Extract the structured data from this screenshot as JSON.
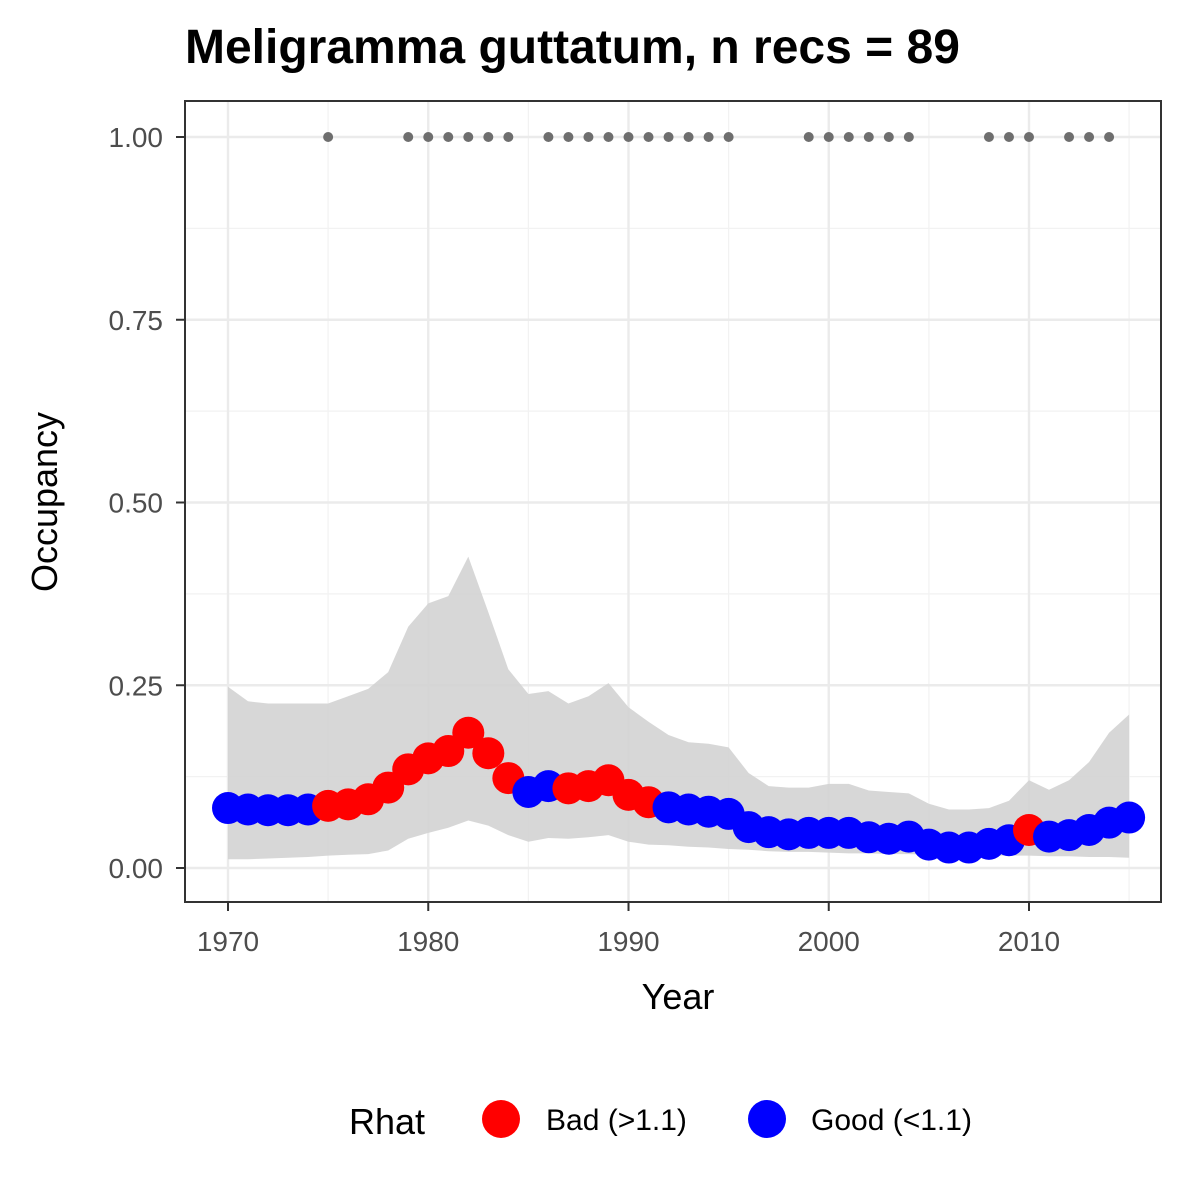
{
  "chart_data": {
    "type": "line",
    "title": "Meligramma guttatum, n recs = 89",
    "xlabel": "Year",
    "ylabel": "Occupancy",
    "xlim": [
      1967.8,
      1917.0
    ],
    "ylim": [
      -0.045,
      1.05
    ],
    "x_ticks": [
      1970,
      1980,
      1990,
      2000,
      2010
    ],
    "x_tick_labels": [
      "1970",
      "1980",
      "1990",
      "2000",
      "2010"
    ],
    "y_ticks": [
      0,
      0.25,
      0.5,
      0.75,
      1.0
    ],
    "y_tick_labels": [
      "0.00",
      "0.25",
      "0.50",
      "0.75",
      "1.00"
    ],
    "grid": true,
    "legend": {
      "title": "Rhat",
      "position": "bottom",
      "items": [
        {
          "label": "Bad (>1.1)",
          "color": "#ff0000"
        },
        {
          "label": "Good (<1.1)",
          "color": "#0000ff"
        }
      ]
    },
    "colors": {
      "Bad": "#ff0000",
      "Good": "#0000ff",
      "ribbon": "#d3d3d3",
      "records": "#6e6e6e"
    },
    "x": [
      1970,
      1971,
      1972,
      1973,
      1974,
      1975,
      1976,
      1977,
      1978,
      1979,
      1980,
      1981,
      1982,
      1983,
      1984,
      1985,
      1986,
      1987,
      1988,
      1989,
      1990,
      1991,
      1992,
      1993,
      1994,
      1995,
      1996,
      1997,
      1998,
      1999,
      2000,
      2001,
      2002,
      2003,
      2004,
      2005,
      2006,
      2007,
      2008,
      2009,
      2010,
      2011,
      2012,
      2013,
      2014,
      2015
    ],
    "occupancy": [
      0.082,
      0.08,
      0.079,
      0.079,
      0.08,
      0.085,
      0.087,
      0.094,
      0.11,
      0.135,
      0.15,
      0.16,
      0.185,
      0.157,
      0.123,
      0.104,
      0.112,
      0.109,
      0.112,
      0.12,
      0.1,
      0.09,
      0.083,
      0.08,
      0.077,
      0.074,
      0.056,
      0.049,
      0.046,
      0.048,
      0.048,
      0.048,
      0.042,
      0.04,
      0.043,
      0.032,
      0.028,
      0.028,
      0.033,
      0.038,
      0.052,
      0.043,
      0.045,
      0.052,
      0.062,
      0.069
    ],
    "lower": [
      0.012,
      0.012,
      0.013,
      0.014,
      0.015,
      0.017,
      0.018,
      0.019,
      0.024,
      0.04,
      0.048,
      0.055,
      0.065,
      0.058,
      0.045,
      0.036,
      0.041,
      0.04,
      0.042,
      0.045,
      0.036,
      0.032,
      0.031,
      0.029,
      0.028,
      0.026,
      0.025,
      0.023,
      0.022,
      0.022,
      0.021,
      0.02,
      0.02,
      0.019,
      0.019,
      0.018,
      0.017,
      0.017,
      0.017,
      0.017,
      0.017,
      0.016,
      0.016,
      0.015,
      0.015,
      0.014
    ],
    "upper": [
      0.248,
      0.228,
      0.225,
      0.225,
      0.225,
      0.225,
      0.235,
      0.245,
      0.268,
      0.33,
      0.362,
      0.372,
      0.426,
      0.35,
      0.272,
      0.238,
      0.242,
      0.225,
      0.235,
      0.253,
      0.22,
      0.2,
      0.182,
      0.172,
      0.17,
      0.165,
      0.13,
      0.112,
      0.11,
      0.11,
      0.115,
      0.115,
      0.106,
      0.104,
      0.102,
      0.088,
      0.08,
      0.08,
      0.082,
      0.092,
      0.12,
      0.107,
      0.12,
      0.145,
      0.185,
      0.21
    ],
    "rhat": [
      "Good",
      "Good",
      "Good",
      "Good",
      "Good",
      "Bad",
      "Bad",
      "Bad",
      "Bad",
      "Bad",
      "Bad",
      "Bad",
      "Bad",
      "Bad",
      "Bad",
      "Good",
      "Good",
      "Bad",
      "Bad",
      "Bad",
      "Bad",
      "Bad",
      "Good",
      "Good",
      "Good",
      "Good",
      "Good",
      "Good",
      "Good",
      "Good",
      "Good",
      "Good",
      "Good",
      "Good",
      "Good",
      "Good",
      "Good",
      "Good",
      "Good",
      "Good",
      "Bad",
      "Good",
      "Good",
      "Good",
      "Good",
      "Good"
    ],
    "record_years": [
      1975,
      1979,
      1980,
      1981,
      1982,
      1983,
      1984,
      1986,
      1987,
      1988,
      1989,
      1990,
      1991,
      1992,
      1993,
      1994,
      1995,
      1999,
      2000,
      2001,
      2002,
      2003,
      2004,
      2008,
      2009,
      2010,
      2012,
      2013,
      2014
    ],
    "record_value": 1.0
  }
}
